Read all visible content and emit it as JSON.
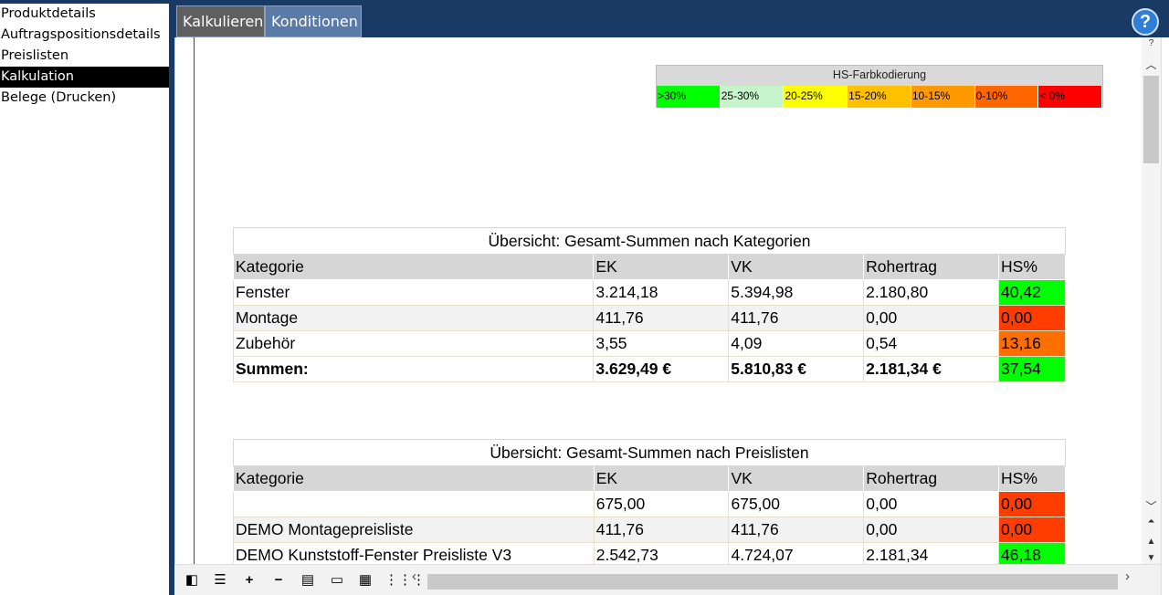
{
  "sidebar": {
    "items": [
      {
        "label": "Produktdetails"
      },
      {
        "label": "Auftragspositionsdetails"
      },
      {
        "label": "Preislisten"
      },
      {
        "label": "Kalkulation"
      },
      {
        "label": "Belege (Drucken)"
      }
    ],
    "active_index": 3
  },
  "header": {
    "tabs": [
      {
        "label": "Kalkulieren"
      },
      {
        "label": "Konditionen"
      }
    ],
    "help_label": "?"
  },
  "legend": {
    "title": "HS-Farbkodierung",
    "items": [
      {
        "label": ">30%",
        "color": "#00ff00"
      },
      {
        "label": "25-30%",
        "color": "#c6f5cc"
      },
      {
        "label": "20-25%",
        "color": "#ffff00"
      },
      {
        "label": "15-20%",
        "color": "#ffc000"
      },
      {
        "label": "10-15%",
        "color": "#ff9900"
      },
      {
        "label": "0-10%",
        "color": "#ff6600"
      },
      {
        "label": "< 0%",
        "color": "#ff0000"
      }
    ]
  },
  "table_categories": {
    "caption": "Übersicht: Gesamt-Summen nach Kategorien",
    "headers": [
      "Kategorie",
      "EK",
      "VK",
      "Rohertrag",
      "HS%"
    ],
    "rows": [
      {
        "kategorie": "Fenster",
        "ek": "3.214,18",
        "vk": "5.394,98",
        "rohertrag": "2.180,80",
        "hs": "40,42"
      },
      {
        "kategorie": "Montage",
        "ek": "411,76",
        "vk": "411,76",
        "rohertrag": "0,00",
        "hs": "0,00"
      },
      {
        "kategorie": "Zubehör",
        "ek": "3,55",
        "vk": "4,09",
        "rohertrag": "0,54",
        "hs": "13,16"
      }
    ],
    "sum": {
      "kategorie": "Summen:",
      "ek": "3.629,49 €",
      "vk": "5.810,83 €",
      "rohertrag": "2.181,34 €",
      "hs": "37,54"
    }
  },
  "table_pricelists": {
    "caption": "Übersicht: Gesamt-Summen nach Preislisten",
    "headers": [
      "Kategorie",
      "EK",
      "VK",
      "Rohertrag",
      "HS%"
    ],
    "rows": [
      {
        "kategorie": "",
        "ek": "675,00",
        "vk": "675,00",
        "rohertrag": "0,00",
        "hs": "0,00"
      },
      {
        "kategorie": "DEMO Montagepreisliste",
        "ek": "411,76",
        "vk": "411,76",
        "rohertrag": "0,00",
        "hs": "0,00"
      },
      {
        "kategorie": "DEMO Kunststoff-Fenster Preisliste V3",
        "ek": "2.542,73",
        "vk": "4.724,07",
        "rohertrag": "2.181,34",
        "hs": "46,18"
      }
    ]
  },
  "scrollbar": {
    "question_label": "?"
  }
}
